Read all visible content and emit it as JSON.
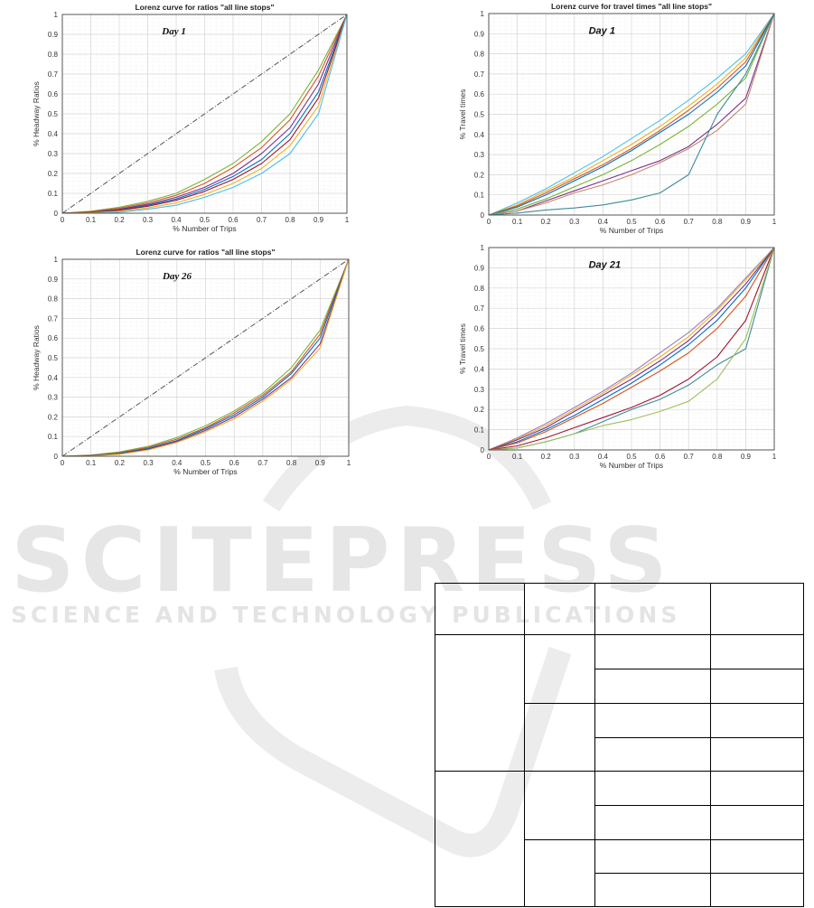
{
  "watermark": {
    "logo_text": "SCITEPRESS",
    "tagline": "SCIENCE AND TECHNOLOGY PUBLICATIONS"
  },
  "chart_data": [
    {
      "type": "line",
      "title": "Lorenz curve for ratios \"all line stops\"",
      "annotation": "Day 1",
      "xlabel": "% Number of Trips",
      "ylabel": "% Headway Ratios",
      "xlim": [
        0,
        1
      ],
      "ylim": [
        0,
        1
      ],
      "xticks": [
        "0",
        "0.1",
        "0.2",
        "0.3",
        "0.4",
        "0.5",
        "0.6",
        "0.7",
        "0.8",
        "0.9",
        "1"
      ],
      "yticks": [
        "0",
        "0.1",
        "0.2",
        "0.3",
        "0.4",
        "0.5",
        "0.6",
        "0.7",
        "0.8",
        "0.9",
        "1"
      ],
      "grid": true,
      "equality_line": true,
      "x": [
        0,
        0.1,
        0.2,
        0.3,
        0.4,
        0.5,
        0.6,
        0.7,
        0.8,
        0.9,
        1
      ],
      "series": [
        {
          "color": "#7bb33a",
          "values": [
            0,
            0.01,
            0.03,
            0.06,
            0.1,
            0.17,
            0.25,
            0.36,
            0.5,
            0.72,
            1
          ]
        },
        {
          "color": "#d9531e",
          "values": [
            0,
            0.008,
            0.025,
            0.052,
            0.09,
            0.15,
            0.23,
            0.33,
            0.47,
            0.69,
            1
          ]
        },
        {
          "color": "#7e2f8e",
          "values": [
            0,
            0.005,
            0.02,
            0.045,
            0.08,
            0.13,
            0.2,
            0.3,
            0.43,
            0.65,
            1
          ]
        },
        {
          "color": "#0072bd",
          "values": [
            0,
            0.004,
            0.017,
            0.04,
            0.072,
            0.12,
            0.185,
            0.27,
            0.4,
            0.61,
            1
          ]
        },
        {
          "color": "#a2142f",
          "values": [
            0,
            0.003,
            0.015,
            0.035,
            0.065,
            0.11,
            0.17,
            0.25,
            0.37,
            0.58,
            1
          ]
        },
        {
          "color": "#edb120",
          "values": [
            0,
            0.002,
            0.01,
            0.027,
            0.052,
            0.095,
            0.15,
            0.225,
            0.34,
            0.54,
            1
          ]
        },
        {
          "color": "#4dbeee",
          "values": [
            0,
            0,
            0.005,
            0.02,
            0.04,
            0.08,
            0.13,
            0.2,
            0.3,
            0.5,
            1
          ]
        }
      ]
    },
    {
      "type": "line",
      "title": "Lorenz curve for travel times \"all line stops\"",
      "annotation": "Day 1",
      "xlabel": "% Number of Trips",
      "ylabel": "% Travel times",
      "xlim": [
        0,
        1
      ],
      "ylim": [
        0,
        1
      ],
      "xticks": [
        "0",
        "0.1",
        "0.2",
        "0.3",
        "0.4",
        "0.5",
        "0.6",
        "0.7",
        "0.8",
        "0.9",
        "1"
      ],
      "yticks": [
        "0",
        "0.1",
        "0.2",
        "0.3",
        "0.4",
        "0.5",
        "0.6",
        "0.7",
        "0.8",
        "0.9",
        "1"
      ],
      "grid": true,
      "equality_line": false,
      "x": [
        0,
        0.1,
        0.2,
        0.3,
        0.4,
        0.5,
        0.6,
        0.7,
        0.8,
        0.9,
        1
      ],
      "series": [
        {
          "color": "#4dbeee",
          "values": [
            0,
            0.06,
            0.13,
            0.21,
            0.29,
            0.38,
            0.47,
            0.57,
            0.68,
            0.8,
            1
          ]
        },
        {
          "color": "#edb120",
          "values": [
            0,
            0.05,
            0.12,
            0.19,
            0.27,
            0.35,
            0.44,
            0.54,
            0.65,
            0.78,
            1
          ]
        },
        {
          "color": "#d9531e",
          "values": [
            0,
            0.045,
            0.11,
            0.18,
            0.25,
            0.33,
            0.42,
            0.52,
            0.63,
            0.76,
            1
          ]
        },
        {
          "color": "#0072bd",
          "values": [
            0,
            0.04,
            0.1,
            0.17,
            0.24,
            0.32,
            0.41,
            0.5,
            0.61,
            0.74,
            1
          ]
        },
        {
          "color": "#7bb33a",
          "values": [
            0,
            0.03,
            0.08,
            0.14,
            0.2,
            0.27,
            0.35,
            0.44,
            0.55,
            0.68,
            1
          ]
        },
        {
          "color": "#7e2f8e",
          "values": [
            0,
            0.02,
            0.07,
            0.12,
            0.17,
            0.22,
            0.27,
            0.34,
            0.45,
            0.58,
            1
          ]
        },
        {
          "color": "#c2876a",
          "values": [
            0,
            0.02,
            0.06,
            0.11,
            0.15,
            0.2,
            0.26,
            0.33,
            0.42,
            0.55,
            1
          ]
        },
        {
          "color": "#3f8c9a",
          "values": [
            0,
            0.01,
            0.025,
            0.035,
            0.05,
            0.075,
            0.11,
            0.2,
            0.5,
            0.7,
            1
          ]
        }
      ]
    },
    {
      "type": "line",
      "title": "Lorenz curve for ratios \"all line stops\"",
      "annotation": "Day 26",
      "xlabel": "% Number of Trips",
      "ylabel": "% Headway Ratios",
      "xlim": [
        0,
        1
      ],
      "ylim": [
        0,
        1
      ],
      "xticks": [
        "0",
        "0.1",
        "0.2",
        "0.3",
        "0.4",
        "0.5",
        "0.6",
        "0.7",
        "0.8",
        "0.9",
        "1"
      ],
      "yticks": [
        "0",
        "0.1",
        "0.2",
        "0.3",
        "0.4",
        "0.5",
        "0.6",
        "0.7",
        "0.8",
        "0.9",
        "1"
      ],
      "grid": true,
      "equality_line": true,
      "x": [
        0,
        0.1,
        0.2,
        0.3,
        0.4,
        0.5,
        0.6,
        0.7,
        0.8,
        0.9,
        1
      ],
      "series": [
        {
          "color": "#7bb33a",
          "values": [
            0,
            0.006,
            0.022,
            0.05,
            0.095,
            0.155,
            0.23,
            0.32,
            0.45,
            0.64,
            1
          ]
        },
        {
          "color": "#d9531e",
          "values": [
            0,
            0.004,
            0.018,
            0.045,
            0.087,
            0.145,
            0.22,
            0.31,
            0.43,
            0.62,
            1
          ]
        },
        {
          "color": "#0072bd",
          "values": [
            0,
            0.003,
            0.015,
            0.04,
            0.08,
            0.14,
            0.21,
            0.3,
            0.42,
            0.6,
            1
          ]
        },
        {
          "color": "#7e2f8e",
          "values": [
            0,
            0.002,
            0.012,
            0.036,
            0.075,
            0.132,
            0.2,
            0.29,
            0.4,
            0.57,
            1
          ]
        },
        {
          "color": "#edb120",
          "values": [
            0,
            0.001,
            0.01,
            0.032,
            0.07,
            0.125,
            0.19,
            0.28,
            0.39,
            0.55,
            1
          ]
        }
      ]
    },
    {
      "type": "line",
      "title": "",
      "annotation": "Day 21",
      "xlabel": "% Number of Trips",
      "ylabel": "% Travel times",
      "xlim": [
        0,
        1
      ],
      "ylim": [
        0,
        1
      ],
      "xticks": [
        "0",
        "0.1",
        "0.2",
        "0.3",
        "0.4",
        "0.5",
        "0.6",
        "0.7",
        "0.8",
        "0.9",
        "1"
      ],
      "yticks": [
        "0",
        "0.1",
        "0.2",
        "0.3",
        "0.4",
        "0.5",
        "0.6",
        "0.7",
        "0.8",
        "0.9",
        "1"
      ],
      "grid": true,
      "equality_line": false,
      "x": [
        0,
        0.1,
        0.2,
        0.3,
        0.4,
        0.5,
        0.6,
        0.7,
        0.8,
        0.9,
        1
      ],
      "series": [
        {
          "color": "#9b7fc0",
          "values": [
            0,
            0.06,
            0.13,
            0.21,
            0.29,
            0.38,
            0.48,
            0.58,
            0.7,
            0.85,
            1
          ]
        },
        {
          "color": "#edb120",
          "values": [
            0,
            0.055,
            0.12,
            0.2,
            0.28,
            0.37,
            0.46,
            0.56,
            0.69,
            0.84,
            1
          ]
        },
        {
          "color": "#7e2f8e",
          "values": [
            0,
            0.05,
            0.11,
            0.19,
            0.27,
            0.35,
            0.44,
            0.54,
            0.67,
            0.82,
            1
          ]
        },
        {
          "color": "#0072bd",
          "values": [
            0,
            0.04,
            0.1,
            0.17,
            0.25,
            0.33,
            0.42,
            0.52,
            0.64,
            0.8,
            1
          ]
        },
        {
          "color": "#d9531e",
          "values": [
            0,
            0.035,
            0.09,
            0.16,
            0.23,
            0.31,
            0.39,
            0.48,
            0.6,
            0.76,
            1
          ]
        },
        {
          "color": "#a2142f",
          "values": [
            0,
            0.02,
            0.06,
            0.11,
            0.16,
            0.21,
            0.27,
            0.35,
            0.46,
            0.64,
            1
          ]
        },
        {
          "color": "#3f8c9a",
          "values": [
            0,
            0.01,
            0.04,
            0.08,
            0.14,
            0.2,
            0.25,
            0.32,
            0.42,
            0.5,
            1
          ]
        },
        {
          "color": "#9cc05a",
          "values": [
            0,
            0.01,
            0.04,
            0.08,
            0.12,
            0.15,
            0.19,
            0.24,
            0.35,
            0.55,
            1
          ]
        }
      ]
    }
  ],
  "table": {
    "header": [
      "",
      "",
      "",
      ""
    ],
    "rows": 8
  }
}
